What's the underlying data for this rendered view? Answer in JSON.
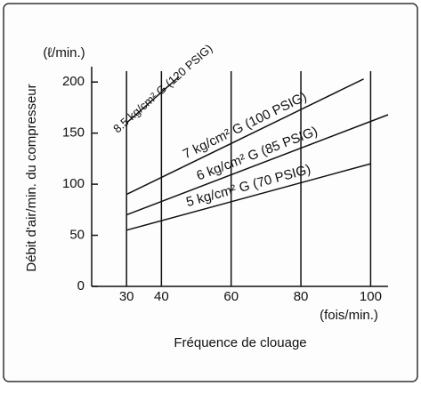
{
  "chart_data": {
    "type": "line",
    "ylabel": "Débit d'air/min. du compresseur",
    "yunit": "(ℓ/min.)",
    "xlabel": "Fréquence de clouage",
    "xunit": "(fois/min.)",
    "xlim": [
      20,
      105
    ],
    "ylim": [
      0,
      215
    ],
    "xticks": [
      30,
      40,
      60,
      80,
      100
    ],
    "yticks": [
      0,
      50,
      100,
      150,
      200
    ],
    "grid": "x",
    "series": [
      {
        "name": "8.5 kg/cm² G (120 PSIG)",
        "color": "#111111",
        "x": [
          30,
          45
        ],
        "values": [
          160,
          205
        ]
      },
      {
        "name": "7 kg/cm² G (100 PSIG)",
        "color": "#111111",
        "x": [
          30,
          98
        ],
        "values": [
          90,
          203
        ]
      },
      {
        "name": "6 kg/cm² G (85 PSIG)",
        "color": "#111111",
        "x": [
          30,
          105
        ],
        "values": [
          70,
          168
        ]
      },
      {
        "name": "5 kg/cm² G (70 PSIG)",
        "color": "#111111",
        "x": [
          30,
          100
        ],
        "values": [
          55,
          120
        ]
      }
    ]
  }
}
